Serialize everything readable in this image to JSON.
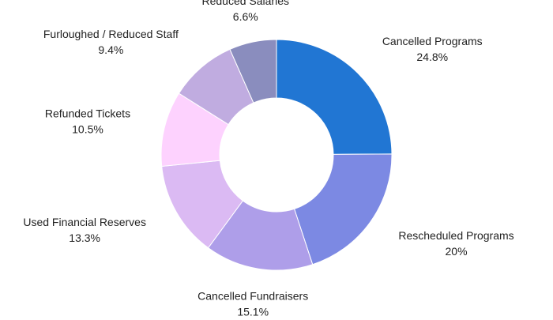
{
  "chart_data": {
    "type": "pie",
    "title": "",
    "hole": true,
    "slices": [
      {
        "label": "Cancelled Programs",
        "value": 24.8,
        "display": "24.8%",
        "color": "#2176d3"
      },
      {
        "label": "Rescheduled Programs",
        "value": 20,
        "display": "20%",
        "color": "#7c89e3"
      },
      {
        "label": "Cancelled Fundraisers",
        "value": 15.1,
        "display": "15.1%",
        "color": "#ae9ee9"
      },
      {
        "label": "Used Financial Reserves",
        "value": 13.3,
        "display": "13.3%",
        "color": "#dbbaf3"
      },
      {
        "label": "Refunded Tickets",
        "value": 10.5,
        "display": "10.5%",
        "color": "#fdd2fe"
      },
      {
        "label": "Furloughed / Reduced Staff",
        "value": 9.4,
        "display": "9.4%",
        "color": "#c0ace0"
      },
      {
        "label": "Reduced Salaries",
        "value": 6.6,
        "display": "6.6%",
        "color": "#8a8dbe"
      }
    ]
  }
}
